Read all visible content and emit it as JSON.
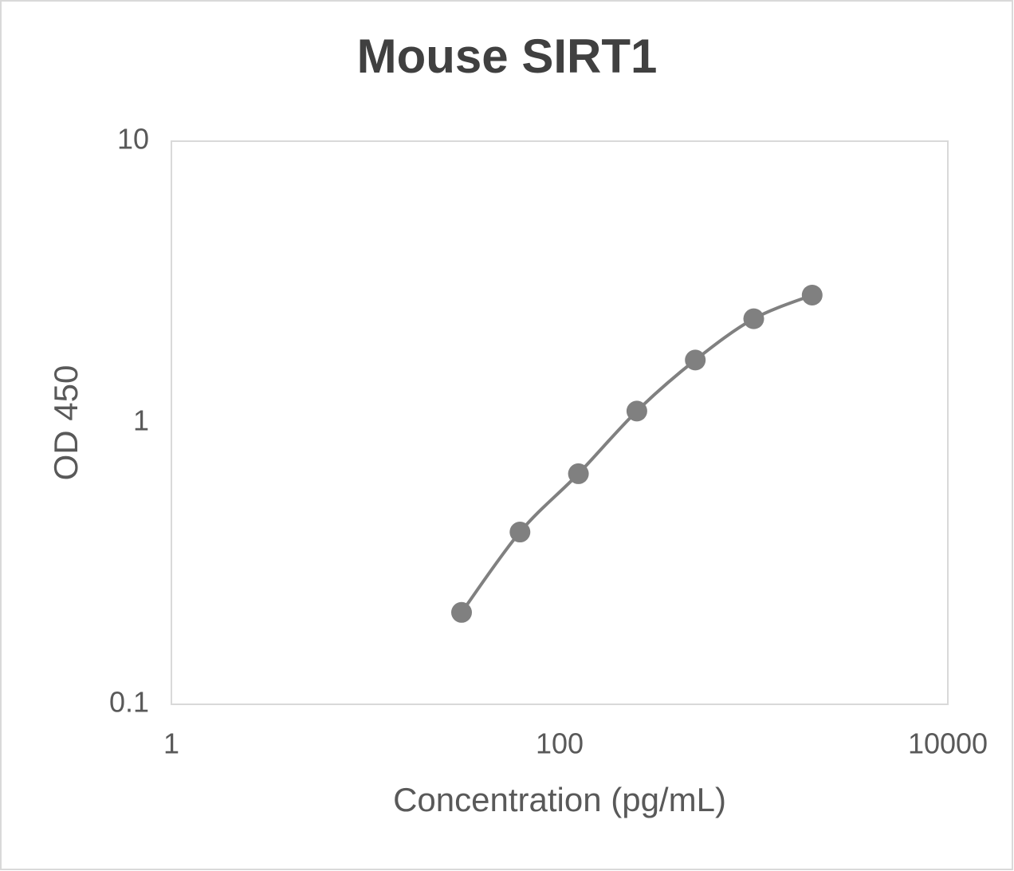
{
  "chart_data": {
    "type": "scatter",
    "title": "Mouse SIRT1",
    "x_label": "Concentration (pg/mL)",
    "y_label": "OD 450",
    "x": [
      31.25,
      62.5,
      125,
      250,
      500,
      1000,
      2000
    ],
    "values": [
      0.212,
      0.409,
      0.659,
      1.1,
      1.67,
      2.34,
      2.84
    ],
    "color": "#808080",
    "xlim": [
      1,
      10000
    ],
    "xticks": [
      1,
      100,
      10000
    ],
    "ylim": [
      0.1,
      10
    ],
    "yticks": [
      0.1,
      1,
      10
    ],
    "xlog": true,
    "ylog": true,
    "smooth_line": true
  }
}
